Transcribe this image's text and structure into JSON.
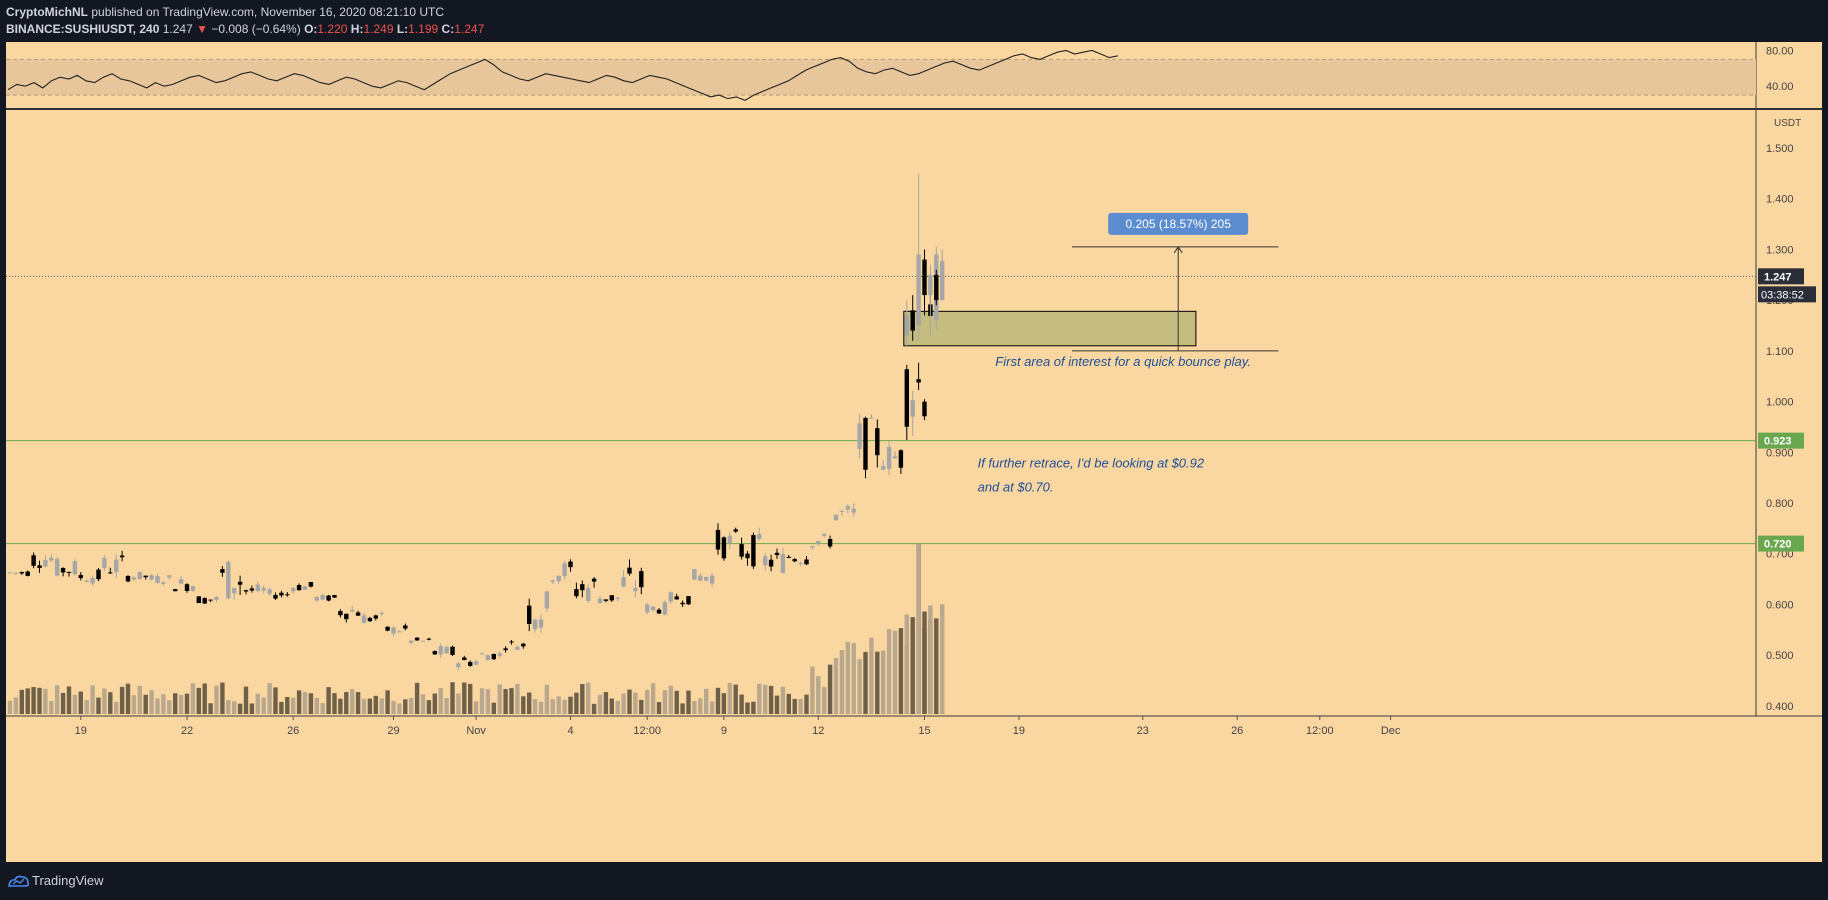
{
  "header": {
    "author": "CryptoMichNL",
    "published_text": "published on TradingView.com, November 16, 2020 08:21:10 UTC",
    "symbol": "BINANCE:SUSHIUSDT, 240",
    "last": "1.247",
    "change": "−0.008 (−0.64%)",
    "o_label": "O:",
    "o_value": "1.220",
    "h_label": "H:",
    "h_value": "1.249",
    "l_label": "L:",
    "l_value": "1.199",
    "c_label": "C:",
    "c_value": "1.247",
    "down_arrow": "▼"
  },
  "footer": {
    "brand": "TradingView",
    "logo_icon": "tradingview-logo-icon"
  },
  "colors": {
    "background": "#fad7a0",
    "frame": "#131722",
    "bull": "#a6a6a6",
    "bear": "#000000",
    "support_line": "#6aa84f",
    "label_green": "#6aa84f",
    "zone_fill": "#c5bc80",
    "measure_label": "#5b8ccf",
    "annotation_text": "#1f4e9c"
  },
  "chart_data": {
    "type": "candlestick",
    "symbol": "BINANCE:SUSHIUSDT",
    "interval": "240",
    "ylabel": "USDT",
    "ylim": [
      0.38,
      1.575
    ],
    "y_ticks": [
      "1.500",
      "1.400",
      "1.300",
      "1.200",
      "1.100",
      "1.000",
      "0.900",
      "0.800",
      "0.700",
      "0.600",
      "0.500",
      "0.400"
    ],
    "x_ticks": [
      {
        "label": "19",
        "idx": 12
      },
      {
        "label": "22",
        "idx": 30
      },
      {
        "label": "26",
        "idx": 48
      },
      {
        "label": "29",
        "idx": 65
      },
      {
        "label": "Nov",
        "idx": 79
      },
      {
        "label": "4",
        "idx": 95
      },
      {
        "label": "12:00",
        "idx": 108
      },
      {
        "label": "9",
        "idx": 121
      },
      {
        "label": "12",
        "idx": 137
      },
      {
        "label": "15",
        "idx": 155
      },
      {
        "label": "19",
        "idx": 171
      },
      {
        "label": "23",
        "idx": 192
      },
      {
        "label": "26",
        "idx": 208
      },
      {
        "label": "12:00",
        "idx": 222
      },
      {
        "label": "Dec",
        "idx": 234
      }
    ],
    "price_bands": [
      {
        "from": 0.655,
        "to": 0.67
      },
      {
        "from": 0.67,
        "to": 0.71
      },
      {
        "from": 0.65,
        "to": 0.69
      },
      {
        "from": 0.64,
        "to": 0.67
      },
      {
        "from": 0.65,
        "to": 0.7
      },
      {
        "from": 0.645,
        "to": 0.665
      },
      {
        "from": 0.64,
        "to": 0.66
      },
      {
        "from": 0.625,
        "to": 0.655
      },
      {
        "from": 0.6,
        "to": 0.62
      },
      {
        "from": 0.605,
        "to": 0.695
      },
      {
        "from": 0.615,
        "to": 0.64
      },
      {
        "from": 0.61,
        "to": 0.63
      },
      {
        "from": 0.625,
        "to": 0.645
      },
      {
        "from": 0.605,
        "to": 0.62
      },
      {
        "from": 0.57,
        "to": 0.605
      },
      {
        "from": 0.56,
        "to": 0.585
      },
      {
        "from": 0.54,
        "to": 0.56
      },
      {
        "from": 0.52,
        "to": 0.535
      },
      {
        "from": 0.49,
        "to": 0.52
      },
      {
        "from": 0.475,
        "to": 0.5
      },
      {
        "from": 0.49,
        "to": 0.51
      },
      {
        "from": 0.51,
        "to": 0.53
      },
      {
        "from": 0.55,
        "to": 0.63
      },
      {
        "from": 0.64,
        "to": 0.69
      },
      {
        "from": 0.6,
        "to": 0.665
      },
      {
        "from": 0.6,
        "to": 0.625
      },
      {
        "from": 0.605,
        "to": 0.675
      },
      {
        "from": 0.58,
        "to": 0.605
      },
      {
        "from": 0.6,
        "to": 0.625
      },
      {
        "from": 0.64,
        "to": 0.67
      },
      {
        "from": 0.69,
        "to": 0.75
      },
      {
        "from": 0.675,
        "to": 0.74
      },
      {
        "from": 0.66,
        "to": 0.71
      },
      {
        "from": 0.675,
        "to": 0.715
      },
      {
        "from": 0.71,
        "to": 0.74
      },
      {
        "from": 0.755,
        "to": 0.8
      },
      {
        "from": 0.865,
        "to": 0.97
      },
      {
        "from": 0.86,
        "to": 0.92
      },
      {
        "from": 0.95,
        "to": 1.12
      },
      {
        "from": 1.12,
        "to": 1.3
      },
      {
        "from": 1.23,
        "to": 1.29
      },
      {
        "from": 1.2,
        "to": 1.25
      }
    ],
    "volume": {
      "max_relative_height": 1.0,
      "peak_index": 154
    },
    "horizontal_levels": [
      {
        "value": 0.923,
        "label": "0.923"
      },
      {
        "value": 0.72,
        "label": "0.720"
      }
    ],
    "last_price": {
      "value": 1.247,
      "label": "1.247",
      "countdown": "03:38:52"
    },
    "zone": {
      "top": 1.178,
      "bottom": 1.11,
      "start_idx": 152,
      "end_idx": 201
    },
    "measure": {
      "label": "0.205 (18.57%) 205",
      "from": 1.1,
      "to": 1.305,
      "start_idx": 180,
      "end_idx": 215
    },
    "annotations": [
      {
        "text": "First area of interest for a quick bounce play.",
        "value": 1.07,
        "idx": 167
      },
      {
        "text": "If further retrace, I'd be looking at $0.92",
        "value": 0.87,
        "idx": 164
      },
      {
        "text": "and at $0.70.",
        "value": 0.823,
        "idx": 164
      }
    ],
    "rsi": {
      "y_ticks": [
        "80.00",
        "40.00"
      ],
      "ylim": [
        20,
        85
      ],
      "band": [
        30,
        70
      ],
      "values": [
        36,
        42,
        40,
        44,
        38,
        46,
        50,
        48,
        52,
        46,
        44,
        50,
        54,
        48,
        46,
        42,
        38,
        44,
        40,
        42,
        46,
        50,
        52,
        48,
        44,
        46,
        50,
        54,
        56,
        52,
        48,
        46,
        50,
        54,
        52,
        48,
        44,
        42,
        46,
        50,
        48,
        44,
        40,
        38,
        42,
        46,
        44,
        40,
        36,
        42,
        48,
        54,
        58,
        62,
        66,
        70,
        64,
        56,
        52,
        48,
        46,
        50,
        54,
        52,
        50,
        48,
        46,
        44,
        48,
        52,
        50,
        46,
        44,
        48,
        52,
        50,
        48,
        44,
        40,
        36,
        32,
        28,
        30,
        26,
        28,
        24,
        30,
        34,
        38,
        42,
        46,
        52,
        58,
        62,
        66,
        70,
        72,
        68,
        60,
        56,
        54,
        58,
        60,
        56,
        52,
        54,
        58,
        62,
        66,
        68,
        64,
        60,
        58,
        62,
        66,
        70,
        74,
        76,
        72,
        70,
        74,
        78,
        80,
        76,
        78,
        80,
        76,
        72,
        74
      ]
    }
  }
}
